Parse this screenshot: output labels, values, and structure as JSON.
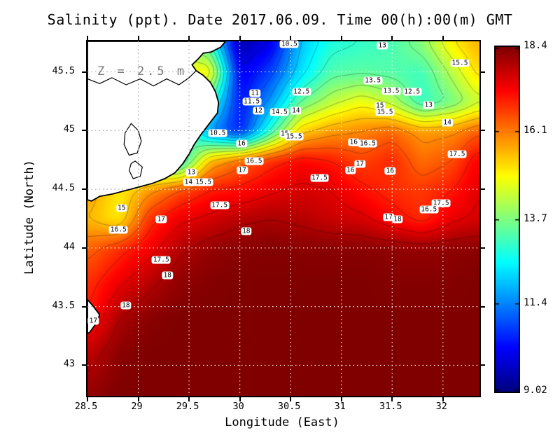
{
  "chart_data": {
    "type": "heatmap",
    "title": "Salinity (ppt). Date 2017.06.09. Time 00(h):00(m) GMT",
    "xlabel": "Longitude (East)",
    "ylabel": "Latitude (North)",
    "annotation": "Z = 2.5 m",
    "units": "ppt",
    "xlim": [
      28.5,
      32.36
    ],
    "ylim": [
      42.74,
      45.76
    ],
    "xticks": [
      "28.5",
      "29",
      "29.5",
      "30",
      "30.5",
      "31",
      "31.5",
      "32"
    ],
    "yticks": [
      "43",
      "43.5",
      "44",
      "44.5",
      "45",
      "45.5"
    ],
    "grid_on": true,
    "contour_interval": 0.5,
    "colorbar": {
      "min": 9.02,
      "max": 18.4,
      "labels": [
        "18.4",
        "16.1",
        "13.7",
        "11.4",
        "9.02"
      ],
      "colormap": "jet",
      "position": "right"
    },
    "grid": {
      "lons": [
        28.5,
        28.8,
        29.1,
        29.4,
        29.7,
        30.0,
        30.3,
        30.6,
        30.9,
        31.2,
        31.5,
        31.8,
        32.1,
        32.36
      ],
      "lats": [
        45.76,
        45.5,
        45.25,
        45.0,
        44.75,
        44.5,
        44.25,
        44.0,
        43.7,
        43.4,
        43.1,
        42.74
      ],
      "salinity": [
        [
          16.0,
          16.0,
          15.5,
          14.0,
          13.0,
          9.4,
          10.0,
          12.0,
          12.8,
          13.0,
          13.2,
          13.8,
          15.0,
          15.6
        ],
        [
          16.0,
          16.0,
          15.5,
          15.0,
          15.0,
          10.0,
          10.8,
          12.3,
          13.3,
          13.4,
          13.3,
          13.1,
          14.2,
          15.2
        ],
        [
          16.0,
          16.0,
          15.5,
          14.5,
          13.0,
          10.3,
          11.6,
          13.5,
          14.3,
          14.8,
          14.3,
          13.0,
          13.6,
          14.4
        ],
        [
          16.0,
          16.0,
          15.5,
          14.0,
          11.5,
          10.4,
          13.0,
          15.3,
          15.8,
          16.0,
          16.3,
          15.8,
          15.9,
          16.4
        ],
        [
          15.0,
          14.5,
          13.0,
          12.5,
          15.5,
          16.3,
          16.8,
          17.2,
          17.0,
          16.6,
          16.9,
          16.2,
          16.5,
          17.3
        ],
        [
          15.8,
          15.0,
          15.8,
          16.5,
          17.0,
          17.1,
          17.4,
          17.6,
          17.5,
          17.1,
          16.8,
          16.7,
          17.0,
          17.5
        ],
        [
          15.5,
          15.0,
          16.8,
          17.4,
          17.6,
          17.9,
          18.0,
          17.9,
          17.7,
          17.6,
          17.2,
          16.8,
          17.4,
          17.6
        ],
        [
          16.3,
          16.8,
          17.3,
          17.9,
          18.2,
          18.3,
          18.35,
          18.3,
          18.3,
          18.3,
          18.25,
          18.2,
          18.25,
          18.3
        ],
        [
          16.8,
          17.4,
          17.9,
          18.25,
          18.35,
          18.4,
          18.4,
          18.4,
          18.4,
          18.4,
          18.35,
          18.35,
          18.35,
          18.4
        ],
        [
          17.0,
          18.0,
          18.3,
          18.4,
          18.4,
          18.4,
          18.4,
          18.4,
          18.4,
          18.4,
          18.4,
          18.4,
          18.4,
          18.4
        ],
        [
          17.8,
          18.3,
          18.4,
          18.4,
          18.4,
          18.4,
          18.4,
          18.4,
          18.4,
          18.4,
          18.4,
          18.4,
          18.4,
          18.4
        ],
        [
          18.2,
          18.4,
          18.4,
          18.4,
          18.4,
          18.4,
          18.4,
          18.4,
          18.4,
          18.4,
          18.4,
          18.4,
          18.4,
          18.4
        ]
      ]
    },
    "contour_labels": [
      {
        "v": "10.5",
        "x": 51.5,
        "y": 0.8
      },
      {
        "v": "13",
        "x": 75.2,
        "y": 1.2
      },
      {
        "v": "15.5",
        "x": 95.0,
        "y": 6.2
      },
      {
        "v": "13.5",
        "x": 72.8,
        "y": 11.0
      },
      {
        "v": "11",
        "x": 42.7,
        "y": 14.6
      },
      {
        "v": "12.5",
        "x": 54.6,
        "y": 14.2
      },
      {
        "v": "13.5",
        "x": 77.5,
        "y": 14.0
      },
      {
        "v": "12.5",
        "x": 82.8,
        "y": 14.2
      },
      {
        "v": "11.5",
        "x": 41.9,
        "y": 17.0
      },
      {
        "v": "13",
        "x": 87.0,
        "y": 18.0
      },
      {
        "v": "12",
        "x": 43.6,
        "y": 19.6
      },
      {
        "v": "14.5",
        "x": 49.0,
        "y": 19.9
      },
      {
        "v": "14",
        "x": 53.2,
        "y": 19.5
      },
      {
        "v": "15",
        "x": 74.6,
        "y": 18.2
      },
      {
        "v": "15.5",
        "x": 75.9,
        "y": 20.0
      },
      {
        "v": "14",
        "x": 91.8,
        "y": 22.9
      },
      {
        "v": "10.5",
        "x": 33.2,
        "y": 25.9
      },
      {
        "v": "15",
        "x": 50.3,
        "y": 26.1
      },
      {
        "v": "15.5",
        "x": 52.7,
        "y": 26.9
      },
      {
        "v": "16",
        "x": 39.3,
        "y": 28.8
      },
      {
        "v": "16",
        "x": 67.9,
        "y": 28.4
      },
      {
        "v": "16.5",
        "x": 71.5,
        "y": 28.8
      },
      {
        "v": "17.5",
        "x": 94.3,
        "y": 31.8
      },
      {
        "v": "16.5",
        "x": 42.5,
        "y": 33.8
      },
      {
        "v": "17",
        "x": 69.5,
        "y": 34.6
      },
      {
        "v": "17",
        "x": 39.5,
        "y": 36.4
      },
      {
        "v": "16",
        "x": 67.1,
        "y": 36.4
      },
      {
        "v": "16",
        "x": 77.2,
        "y": 36.6
      },
      {
        "v": "13",
        "x": 26.5,
        "y": 36.9
      },
      {
        "v": "17.5",
        "x": 59.2,
        "y": 38.5
      },
      {
        "v": "14.5",
        "x": 26.8,
        "y": 39.7
      },
      {
        "v": "15.5",
        "x": 29.6,
        "y": 39.7
      },
      {
        "v": "17.5",
        "x": 90.2,
        "y": 45.7
      },
      {
        "v": "17.5",
        "x": 33.7,
        "y": 46.2
      },
      {
        "v": "15",
        "x": 8.7,
        "y": 47.0
      },
      {
        "v": "16.5",
        "x": 87.1,
        "y": 47.4
      },
      {
        "v": "17",
        "x": 76.8,
        "y": 49.6
      },
      {
        "v": "18",
        "x": 79.1,
        "y": 50.2
      },
      {
        "v": "17",
        "x": 18.8,
        "y": 50.2
      },
      {
        "v": "16.5",
        "x": 7.9,
        "y": 53.2
      },
      {
        "v": "18",
        "x": 40.5,
        "y": 53.6
      },
      {
        "v": "17.5",
        "x": 18.8,
        "y": 61.7
      },
      {
        "v": "18",
        "x": 20.4,
        "y": 66.0
      },
      {
        "v": "18",
        "x": 9.8,
        "y": 74.5
      },
      {
        "v": "17",
        "x": 1.5,
        "y": 78.9
      }
    ],
    "land": {
      "polygons": [
        [
          [
            28.5,
            45.76
          ],
          [
            29.86,
            45.76
          ],
          [
            29.81,
            45.71
          ],
          [
            29.72,
            45.67
          ],
          [
            29.64,
            45.66
          ],
          [
            29.59,
            45.61
          ],
          [
            29.53,
            45.56
          ],
          [
            29.57,
            45.51
          ],
          [
            29.64,
            45.47
          ],
          [
            29.71,
            45.41
          ],
          [
            29.76,
            45.33
          ],
          [
            29.79,
            45.24
          ],
          [
            29.78,
            45.15
          ],
          [
            29.7,
            45.06
          ],
          [
            29.62,
            44.97
          ],
          [
            29.55,
            44.88
          ],
          [
            29.5,
            44.8
          ],
          [
            29.44,
            44.72
          ],
          [
            29.36,
            44.64
          ],
          [
            29.26,
            44.59
          ],
          [
            29.14,
            44.55
          ],
          [
            29.01,
            44.52
          ],
          [
            28.88,
            44.49
          ],
          [
            28.75,
            44.46
          ],
          [
            28.62,
            44.44
          ],
          [
            28.54,
            44.4
          ],
          [
            28.5,
            44.41
          ]
        ],
        [
          [
            28.5,
            43.56
          ],
          [
            28.56,
            43.5
          ],
          [
            28.62,
            43.43
          ],
          [
            28.58,
            43.35
          ],
          [
            28.52,
            43.28
          ],
          [
            28.5,
            43.27
          ]
        ]
      ],
      "lakes": [
        [
          [
            28.93,
            45.06
          ],
          [
            29.0,
            45.0
          ],
          [
            29.03,
            44.91
          ],
          [
            28.99,
            44.81
          ],
          [
            28.91,
            44.79
          ],
          [
            28.86,
            44.88
          ],
          [
            28.87,
            44.98
          ]
        ],
        [
          [
            28.97,
            44.74
          ],
          [
            29.04,
            44.69
          ],
          [
            29.02,
            44.61
          ],
          [
            28.95,
            44.59
          ],
          [
            28.91,
            44.66
          ],
          [
            28.93,
            44.72
          ]
        ]
      ],
      "river": [
        [
          28.5,
          45.44
        ],
        [
          28.62,
          45.4
        ],
        [
          28.74,
          45.45
        ],
        [
          28.88,
          45.39
        ],
        [
          29.02,
          45.44
        ],
        [
          29.15,
          45.38
        ],
        [
          29.28,
          45.44
        ],
        [
          29.4,
          45.39
        ],
        [
          29.5,
          45.45
        ],
        [
          29.57,
          45.51
        ]
      ]
    }
  }
}
